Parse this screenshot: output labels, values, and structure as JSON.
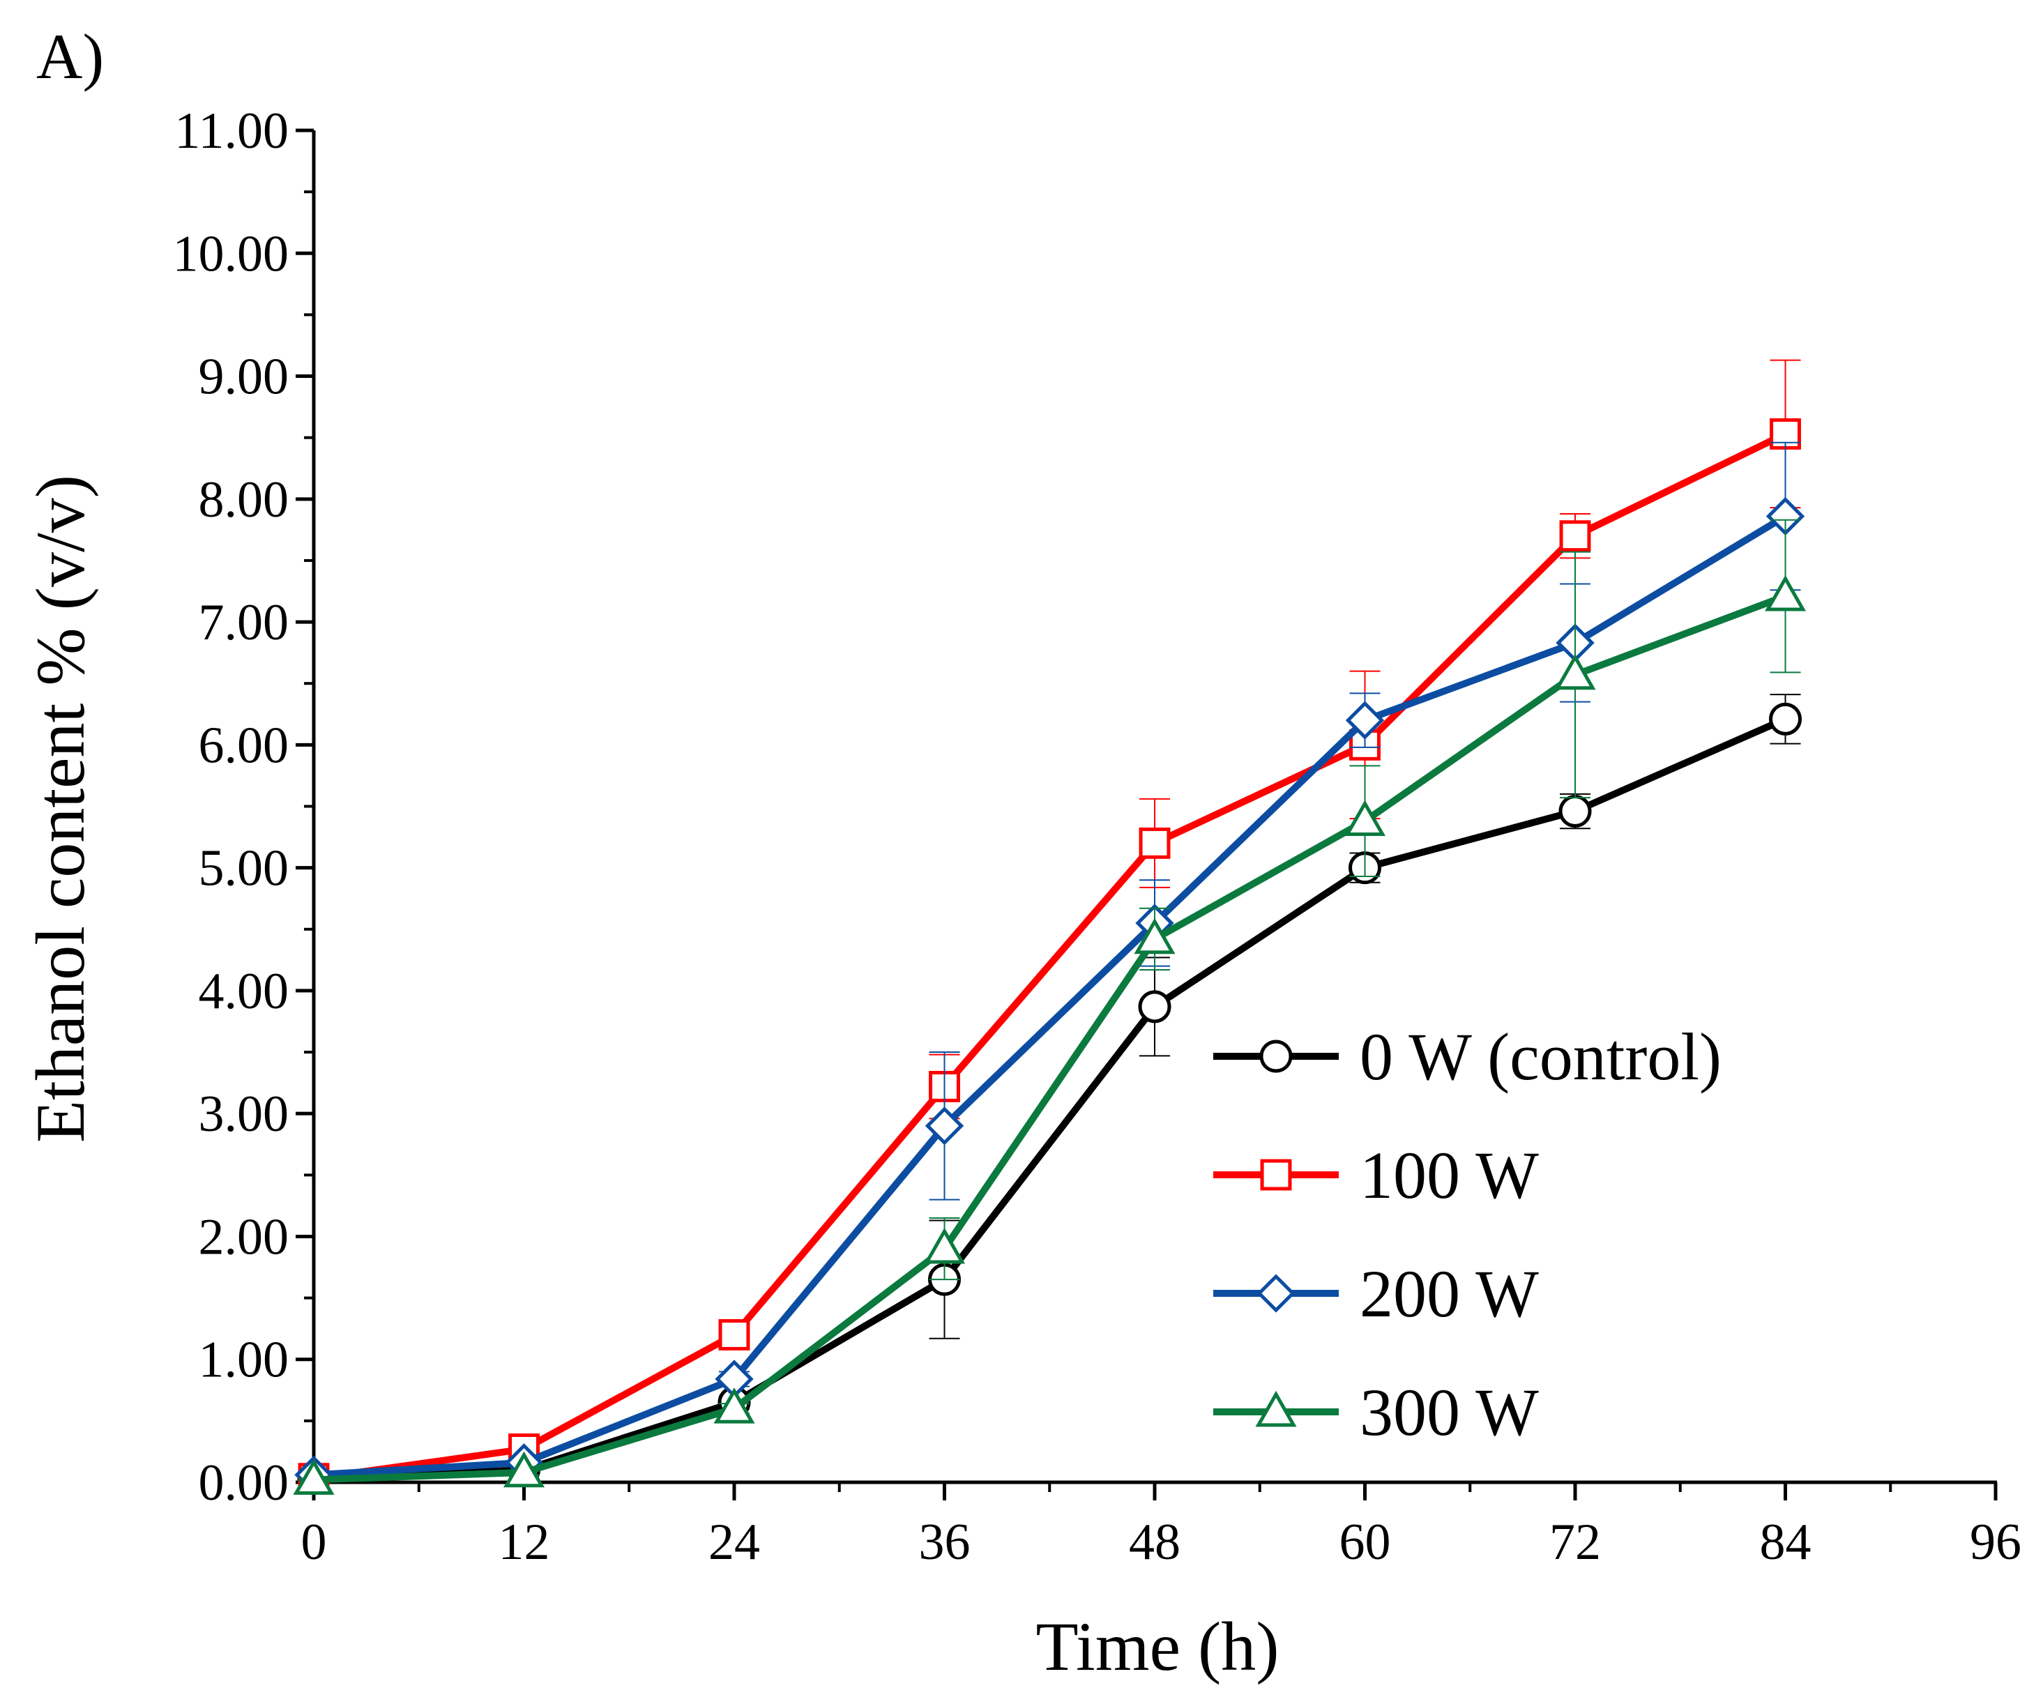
{
  "panel_label": "A)",
  "chart_data": {
    "type": "line",
    "title": "",
    "xlabel": "Time (h)",
    "ylabel": "Ethanol content % (v/v)",
    "xlim": [
      0,
      96
    ],
    "ylim": [
      0,
      11
    ],
    "x_ticks": [
      0,
      12,
      24,
      36,
      48,
      60,
      72,
      84,
      96
    ],
    "x_tick_labels": [
      "0",
      "12",
      "24",
      "36",
      "48",
      "60",
      "72",
      "84",
      "96"
    ],
    "y_ticks": [
      0,
      1,
      2,
      3,
      4,
      5,
      6,
      7,
      8,
      9,
      10,
      11
    ],
    "y_tick_labels": [
      "0.00",
      "1.00",
      "2.00",
      "3.00",
      "4.00",
      "5.00",
      "6.00",
      "7.00",
      "8.00",
      "9.00",
      "10.00",
      "11.00"
    ],
    "legend_position": "lower-right",
    "grid": false,
    "x": [
      0,
      12,
      24,
      36,
      48,
      60,
      72,
      84
    ],
    "series": [
      {
        "name": "0 W (control)",
        "color": "#000000",
        "marker": "circle",
        "values": [
          0.03,
          0.1,
          0.65,
          1.65,
          3.87,
          5.0,
          5.46,
          6.21
        ],
        "errors": [
          0.02,
          0.03,
          0.05,
          0.48,
          0.4,
          0.12,
          0.14,
          0.2
        ]
      },
      {
        "name": "100 W",
        "color": "#ff0000",
        "marker": "square",
        "values": [
          0.03,
          0.27,
          1.2,
          3.22,
          5.2,
          6.0,
          7.7,
          8.53
        ],
        "errors": [
          0.02,
          0.04,
          0.06,
          0.26,
          0.36,
          0.6,
          0.18,
          0.6
        ]
      },
      {
        "name": "200 W",
        "color": "#0c4da2",
        "marker": "diamond",
        "values": [
          0.06,
          0.16,
          0.84,
          2.9,
          4.55,
          6.2,
          6.83,
          7.86
        ],
        "errors": [
          0.02,
          0.03,
          0.06,
          0.6,
          0.35,
          0.22,
          0.48,
          0.6
        ]
      },
      {
        "name": "300 W",
        "color": "#0b7a3e",
        "marker": "triangle",
        "values": [
          0.02,
          0.08,
          0.6,
          1.9,
          4.42,
          5.38,
          6.57,
          7.21
        ],
        "errors": [
          0.01,
          0.02,
          0.04,
          0.25,
          0.25,
          0.45,
          1.0,
          0.62
        ]
      }
    ]
  }
}
